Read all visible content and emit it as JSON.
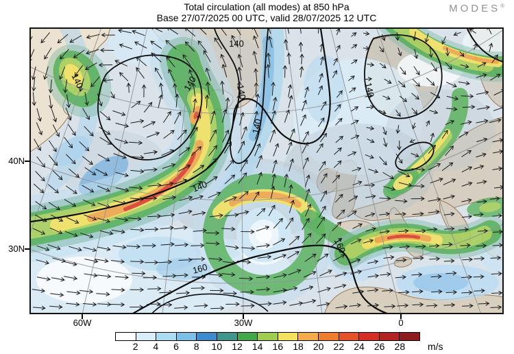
{
  "header": {
    "title_line1": "Total circulation (all modes) at 850 hPa",
    "title_line2": "Base 27/07/2025 00 UTC, valid 28/07/2025 12 UTC",
    "logo_text": "MODES",
    "logo_mark": "®"
  },
  "axes": {
    "lat": [
      "40N",
      "30N"
    ],
    "lon": [
      "60W",
      "30W",
      "0"
    ]
  },
  "contours": {
    "labels": [
      "140",
      "160"
    ]
  },
  "colorbar": {
    "unit": "m/s",
    "ticks": [
      "2",
      "4",
      "6",
      "8",
      "10",
      "12",
      "14",
      "16",
      "18",
      "20",
      "22",
      "24",
      "26",
      "28"
    ],
    "colors": [
      "#ffffff",
      "#d9eef8",
      "#abdcf2",
      "#7cc0e8",
      "#3f8ccd",
      "#41968b",
      "#42a94a",
      "#a0cc51",
      "#f2e25e",
      "#f3ac49",
      "#ee7d2e",
      "#e5522a",
      "#d42e27",
      "#b42323",
      "#8e1b1e"
    ]
  }
}
